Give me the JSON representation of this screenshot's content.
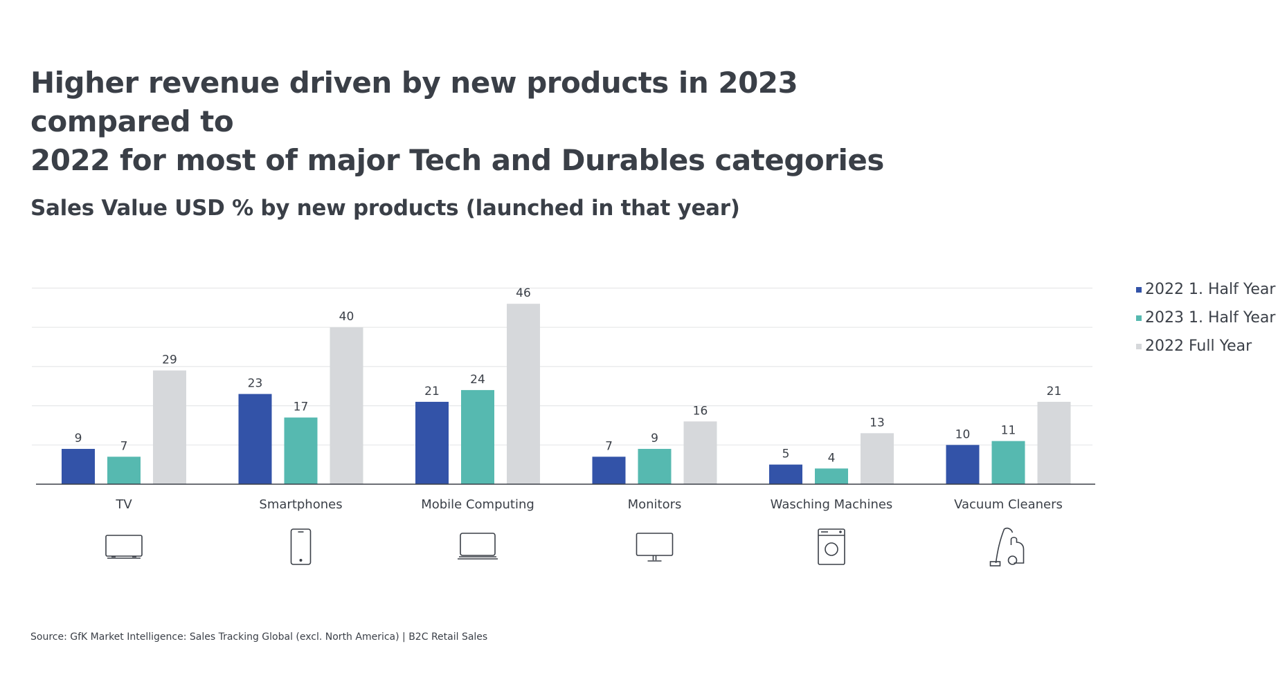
{
  "headline": {
    "line1": "Higher revenue driven by new products in 2023 compared to",
    "line2": "2022 for most of major Tech and Durables categories"
  },
  "source": "Source: GfK Market Intelligence: Sales Tracking Global (excl. North America) | B2C Retail Sales",
  "icons": [
    "tv-icon",
    "smartphone-icon",
    "laptop-icon",
    "monitor-icon",
    "washing-machine-icon",
    "vacuum-cleaner-icon"
  ],
  "chart_data": {
    "type": "bar",
    "title": "Sales Value USD % by new products (launched in that year)",
    "categories": [
      "TV",
      "Smartphones",
      "Mobile Computing",
      "Monitors",
      "Wasching Machines",
      "Vacuum Cleaners"
    ],
    "series": [
      {
        "name": "2022 1. Half Year",
        "color": "#3353a8",
        "values": [
          9,
          23,
          21,
          7,
          5,
          10
        ]
      },
      {
        "name": "2023 1. Half Year",
        "color": "#56b9b0",
        "values": [
          7,
          17,
          24,
          9,
          4,
          11
        ]
      },
      {
        "name": "2022 Full Year",
        "color": "#d6d8db",
        "values": [
          29,
          40,
          46,
          16,
          13,
          21
        ]
      }
    ],
    "ylim": [
      0,
      50
    ],
    "grid": true,
    "legend": "right",
    "xlabel": "",
    "ylabel": ""
  }
}
